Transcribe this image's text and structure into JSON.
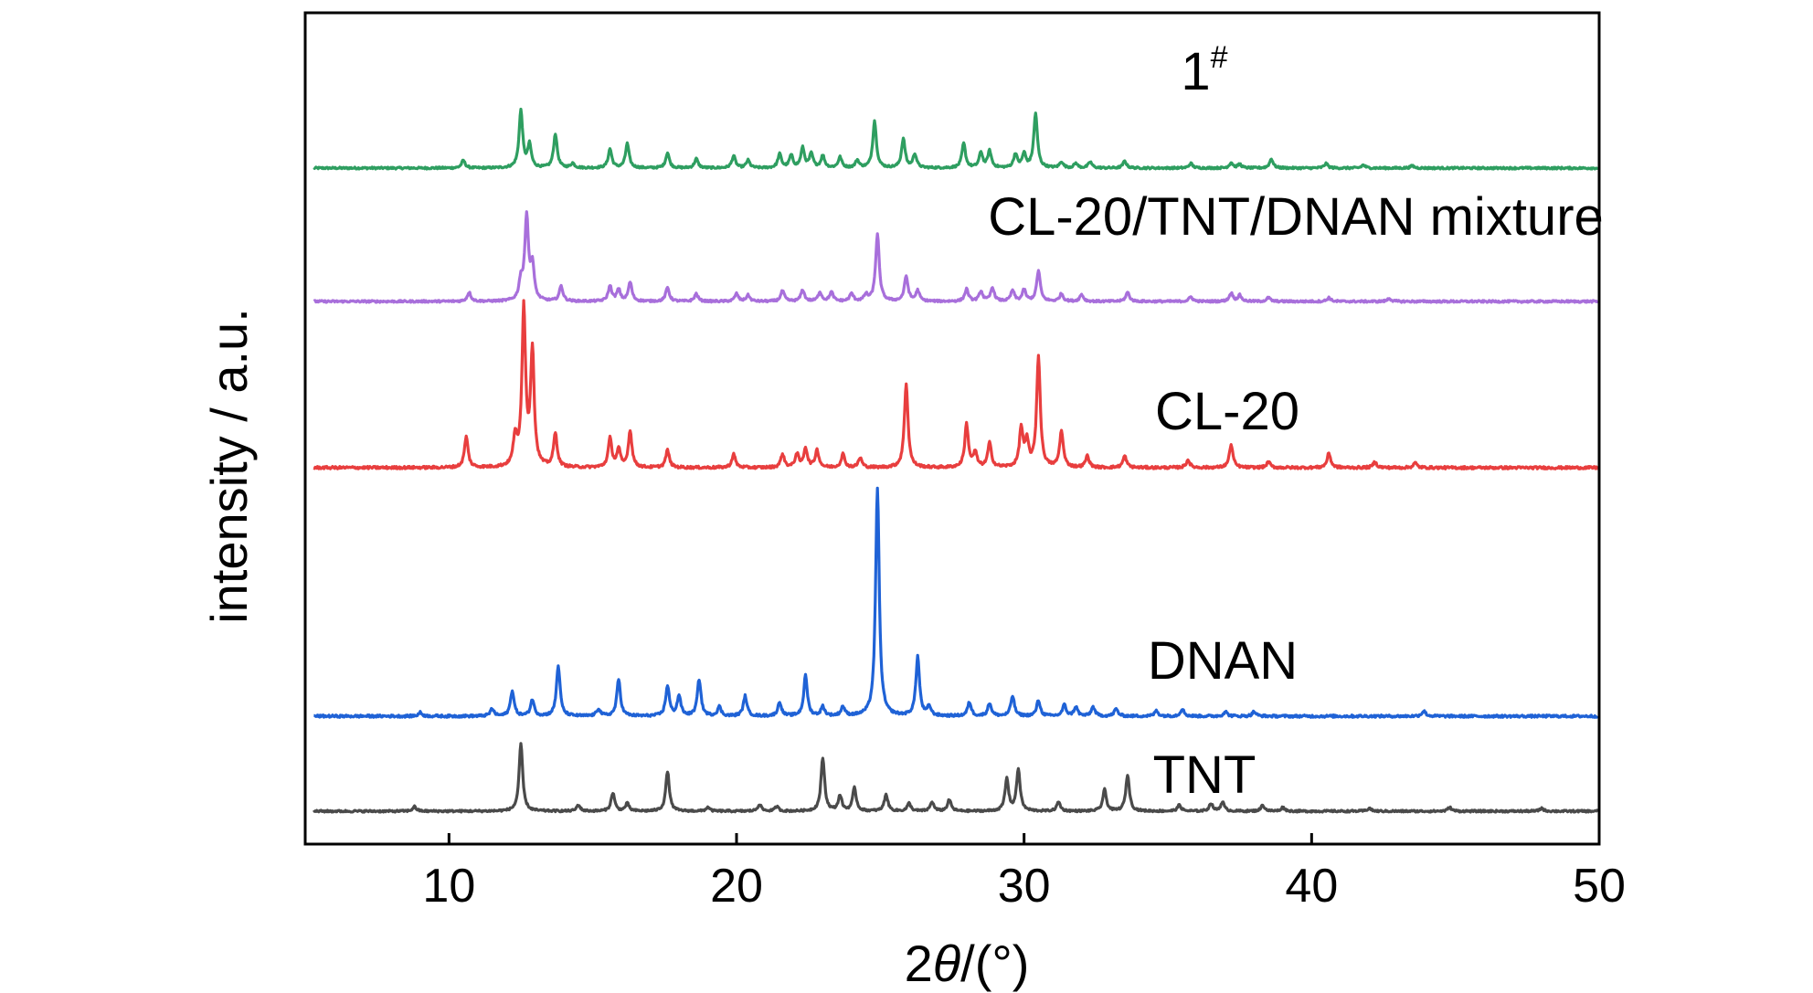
{
  "chart_data": {
    "type": "line",
    "xlabel": "2θ/(°)",
    "xlabel_parts": {
      "prefix": "2",
      "symbol": "θ",
      "suffix": "/(°)"
    },
    "ylabel": "intensity / a.u.",
    "xlim": [
      5,
      50
    ],
    "xticks": [
      10,
      20,
      30,
      40,
      50
    ],
    "grid": false,
    "legend": "none",
    "series": [
      {
        "name": "1#",
        "label_main": "1",
        "label_sup": "#",
        "color": "#2e9e60",
        "peaks": [
          [
            10.5,
            10
          ],
          [
            12.5,
            75
          ],
          [
            12.8,
            30
          ],
          [
            13.7,
            45
          ],
          [
            14.3,
            6
          ],
          [
            15.6,
            25
          ],
          [
            16.2,
            32
          ],
          [
            17.6,
            20
          ],
          [
            18.6,
            12
          ],
          [
            19.9,
            16
          ],
          [
            20.4,
            10
          ],
          [
            21.5,
            18
          ],
          [
            21.9,
            16
          ],
          [
            22.3,
            26
          ],
          [
            22.6,
            18
          ],
          [
            23.0,
            16
          ],
          [
            23.6,
            14
          ],
          [
            24.2,
            10
          ],
          [
            24.8,
            62
          ],
          [
            25.8,
            38
          ],
          [
            26.2,
            18
          ],
          [
            27.9,
            32
          ],
          [
            28.5,
            20
          ],
          [
            28.8,
            22
          ],
          [
            29.7,
            18
          ],
          [
            30.0,
            18
          ],
          [
            30.4,
            72
          ],
          [
            31.3,
            8
          ],
          [
            31.8,
            6
          ],
          [
            32.3,
            8
          ],
          [
            33.5,
            9
          ],
          [
            35.8,
            6
          ],
          [
            37.2,
            7
          ],
          [
            37.5,
            5
          ],
          [
            38.6,
            12
          ],
          [
            40.5,
            6
          ],
          [
            41.8,
            4
          ],
          [
            43.5,
            3
          ]
        ]
      },
      {
        "name": "CL-20/TNT/DNAN mixture",
        "color": "#a86fdb",
        "peaks": [
          [
            10.7,
            12
          ],
          [
            12.5,
            25
          ],
          [
            12.7,
            110
          ],
          [
            12.9,
            45
          ],
          [
            13.9,
            20
          ],
          [
            15.6,
            20
          ],
          [
            15.9,
            15
          ],
          [
            16.3,
            25
          ],
          [
            17.6,
            18
          ],
          [
            18.6,
            10
          ],
          [
            20.0,
            10
          ],
          [
            20.4,
            8
          ],
          [
            21.6,
            14
          ],
          [
            22.3,
            15
          ],
          [
            22.9,
            12
          ],
          [
            23.3,
            12
          ],
          [
            24.0,
            10
          ],
          [
            24.5,
            8
          ],
          [
            24.9,
            88
          ],
          [
            25.9,
            33
          ],
          [
            26.3,
            14
          ],
          [
            28.0,
            16
          ],
          [
            28.5,
            13
          ],
          [
            28.9,
            18
          ],
          [
            29.6,
            14
          ],
          [
            30.0,
            15
          ],
          [
            30.5,
            40
          ],
          [
            31.3,
            10
          ],
          [
            32.0,
            9
          ],
          [
            33.6,
            12
          ],
          [
            35.8,
            6
          ],
          [
            37.2,
            11
          ],
          [
            37.5,
            8
          ],
          [
            38.5,
            5
          ],
          [
            40.6,
            5
          ],
          [
            42.7,
            4
          ]
        ]
      },
      {
        "name": "CL-20",
        "color": "#e83e3e",
        "peaks": [
          [
            10.6,
            32
          ],
          [
            12.3,
            30
          ],
          [
            12.6,
            165
          ],
          [
            12.9,
            120
          ],
          [
            13.7,
            35
          ],
          [
            15.6,
            30
          ],
          [
            15.9,
            18
          ],
          [
            16.3,
            38
          ],
          [
            17.6,
            18
          ],
          [
            19.9,
            14
          ],
          [
            21.6,
            14
          ],
          [
            22.1,
            14
          ],
          [
            22.4,
            20
          ],
          [
            22.8,
            18
          ],
          [
            23.7,
            14
          ],
          [
            24.3,
            10
          ],
          [
            25.9,
            88
          ],
          [
            28.0,
            45
          ],
          [
            28.3,
            15
          ],
          [
            28.8,
            25
          ],
          [
            29.9,
            40
          ],
          [
            30.1,
            25
          ],
          [
            30.5,
            115
          ],
          [
            31.3,
            38
          ],
          [
            32.2,
            12
          ],
          [
            33.5,
            12
          ],
          [
            35.7,
            8
          ],
          [
            37.2,
            24
          ],
          [
            38.5,
            6
          ],
          [
            40.6,
            15
          ],
          [
            42.2,
            6
          ],
          [
            43.6,
            5
          ]
        ]
      },
      {
        "name": "DNAN",
        "color": "#1f62d6",
        "peaks": [
          [
            9.0,
            4
          ],
          [
            11.5,
            8
          ],
          [
            12.2,
            28
          ],
          [
            12.9,
            18
          ],
          [
            13.8,
            55
          ],
          [
            15.2,
            8
          ],
          [
            15.9,
            40
          ],
          [
            17.6,
            33
          ],
          [
            18.0,
            22
          ],
          [
            18.7,
            40
          ],
          [
            19.4,
            10
          ],
          [
            20.3,
            22
          ],
          [
            21.5,
            15
          ],
          [
            22.4,
            44
          ],
          [
            23.0,
            10
          ],
          [
            23.7,
            10
          ],
          [
            24.9,
            250
          ],
          [
            26.3,
            65
          ],
          [
            26.7,
            10
          ],
          [
            28.1,
            15
          ],
          [
            28.8,
            14
          ],
          [
            29.6,
            22
          ],
          [
            30.5,
            17
          ],
          [
            31.4,
            12
          ],
          [
            31.8,
            10
          ],
          [
            32.4,
            10
          ],
          [
            33.2,
            8
          ],
          [
            34.6,
            6
          ],
          [
            35.5,
            8
          ],
          [
            37.0,
            5
          ],
          [
            38.0,
            5
          ],
          [
            43.9,
            6
          ]
        ]
      },
      {
        "name": "TNT",
        "color": "#4a4a4a",
        "peaks": [
          [
            8.8,
            6
          ],
          [
            12.5,
            88
          ],
          [
            14.5,
            8
          ],
          [
            15.7,
            24
          ],
          [
            16.2,
            10
          ],
          [
            17.6,
            52
          ],
          [
            19.0,
            5
          ],
          [
            20.8,
            9
          ],
          [
            21.4,
            6
          ],
          [
            23.0,
            70
          ],
          [
            23.6,
            20
          ],
          [
            24.1,
            30
          ],
          [
            25.2,
            22
          ],
          [
            26.0,
            10
          ],
          [
            26.8,
            12
          ],
          [
            27.4,
            15
          ],
          [
            29.4,
            42
          ],
          [
            29.8,
            55
          ],
          [
            31.2,
            12
          ],
          [
            32.8,
            28
          ],
          [
            33.6,
            48
          ],
          [
            35.4,
            8
          ],
          [
            36.5,
            10
          ],
          [
            36.9,
            12
          ],
          [
            38.3,
            8
          ],
          [
            39.0,
            5
          ],
          [
            42.0,
            4
          ],
          [
            44.8,
            5
          ],
          [
            48.0,
            4
          ]
        ]
      }
    ]
  }
}
